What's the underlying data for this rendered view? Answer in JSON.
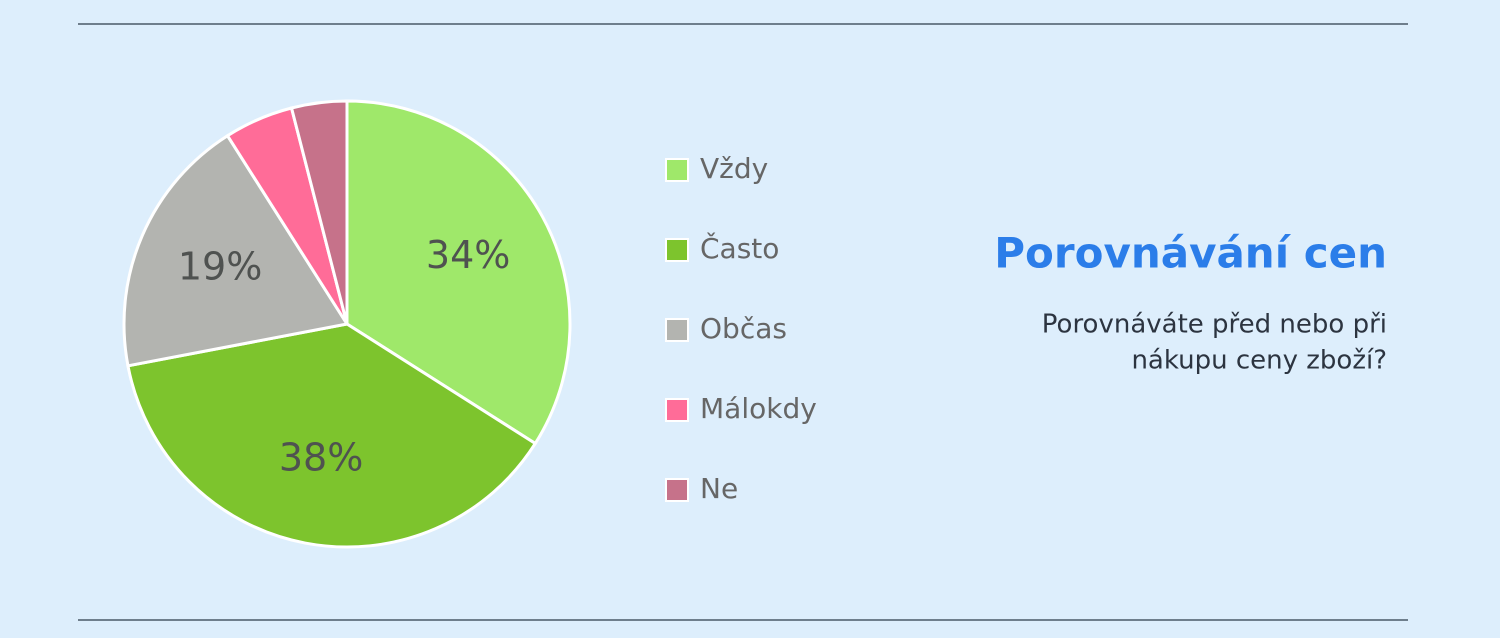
{
  "chart_data": {
    "type": "pie",
    "title": "Porovnávání cen",
    "subtitle": [
      "Porovnáváte před nebo při",
      "nákupu ceny zboží?"
    ],
    "categories": [
      "Vždy",
      "Často",
      "Občas",
      "Málokdy",
      "Ne"
    ],
    "values": [
      34,
      38,
      19,
      5,
      4
    ],
    "value_labels": [
      "34%",
      "38%",
      "19%",
      null,
      null
    ],
    "colors": [
      "#9fe86a",
      "#7dc42d",
      "#b3b4b0",
      "#ff6c98",
      "#c6728a"
    ]
  }
}
